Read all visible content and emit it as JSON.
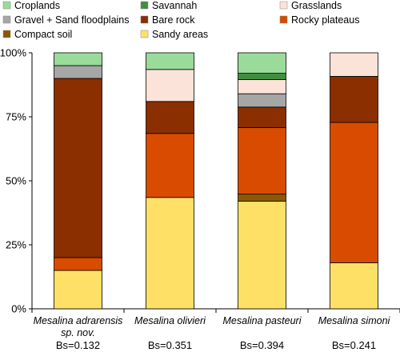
{
  "chart_data": {
    "type": "bar",
    "stacked": true,
    "categories": [
      [
        "Mesalina adrarensis",
        "sp. nov."
      ],
      [
        "Mesalina olivieri"
      ],
      [
        "Mesalina pasteuri"
      ],
      [
        "Mesalina simoni"
      ]
    ],
    "bs_labels": [
      "Bs=0.132",
      "Bs=0.351",
      "Bs=0.394",
      "Bs=0.241"
    ],
    "ylim": [
      0,
      100
    ],
    "yticks": [
      0,
      25,
      50,
      75,
      100
    ],
    "ytick_labels": [
      "0%",
      "25%",
      "50%",
      "75%",
      "100%"
    ],
    "grid": false,
    "legend_position": "top",
    "series": [
      {
        "name": "Sandy areas",
        "color": "#FFE066",
        "values": [
          15,
          43.5,
          42,
          18
        ]
      },
      {
        "name": "Compact soil",
        "color": "#8B5A00",
        "values": [
          0,
          0,
          2.8,
          0
        ]
      },
      {
        "name": "Rocky plateaus",
        "color": "#D94C00",
        "values": [
          5,
          25,
          26,
          54.8
        ]
      },
      {
        "name": "Bare rock",
        "color": "#8B2E00",
        "values": [
          70,
          12.5,
          8,
          18
        ]
      },
      {
        "name": "Gravel + Sand floodplains",
        "color": "#A6A6A6",
        "values": [
          5,
          0,
          5.2,
          0
        ]
      },
      {
        "name": "Grasslands",
        "color": "#FCE3D9",
        "values": [
          0,
          12.5,
          5.5,
          9.2
        ]
      },
      {
        "name": "Savannah",
        "color": "#3F8F3F",
        "values": [
          0,
          0,
          2.5,
          0
        ]
      },
      {
        "name": "Croplands",
        "color": "#9ADB9A",
        "values": [
          5,
          6.5,
          8,
          0
        ]
      }
    ],
    "legend_order": [
      "Croplands",
      "Savannah",
      "Grasslands",
      "Gravel + Sand floodplains",
      "Bare rock",
      "Rocky plateaus",
      "Compact soil",
      "Sandy areas"
    ]
  }
}
